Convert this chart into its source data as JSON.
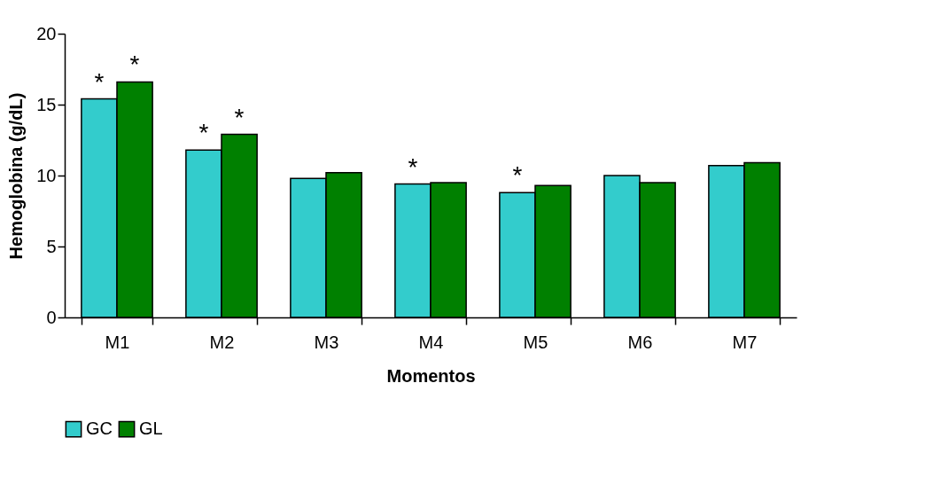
{
  "chart_data": {
    "type": "bar",
    "xlabel": "Momentos",
    "ylabel": "Hemoglobina (g/dL)",
    "categories": [
      "M1",
      "M2",
      "M3",
      "M4",
      "M5",
      "M6",
      "M7"
    ],
    "series": [
      {
        "name": "GC",
        "color": "#33cccc",
        "values": [
          15.4,
          11.8,
          9.8,
          9.4,
          8.8,
          10.0,
          10.7
        ]
      },
      {
        "name": "GL",
        "color": "#008000",
        "values": [
          16.6,
          12.9,
          10.2,
          9.5,
          9.3,
          9.5,
          10.9
        ]
      }
    ],
    "ylim": [
      0,
      20
    ],
    "yticks": [
      0,
      5,
      10,
      15,
      20
    ],
    "grid": false,
    "legend": "bottom",
    "annotations": [
      {
        "text": "*",
        "x": "M1",
        "y": 15.4
      },
      {
        "text": "*",
        "x": "M1",
        "y": 16.6
      },
      {
        "text": "*",
        "x": "M2",
        "y": 11.8
      },
      {
        "text": "*",
        "x": "M2",
        "y": 12.9
      },
      {
        "text": "*",
        "x": "M4",
        "y": 9.4
      },
      {
        "text": "*",
        "x": "M5",
        "y": 8.8
      }
    ]
  }
}
